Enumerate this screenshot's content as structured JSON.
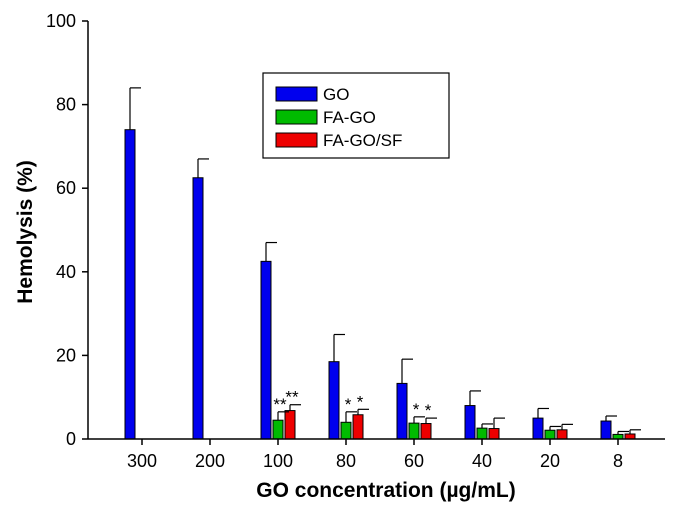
{
  "chart_data": {
    "type": "bar",
    "title": "",
    "xlabel": "GO concentration (µg/mL)",
    "ylabel": "Hemolysis (%)",
    "ylim": [
      0,
      100
    ],
    "yticks": [
      0,
      20,
      40,
      60,
      80,
      100
    ],
    "categories": [
      "300",
      "200",
      "100",
      "80",
      "60",
      "40",
      "20",
      "8"
    ],
    "series": [
      {
        "name": "GO",
        "color": "#0000ee",
        "values": [
          74,
          62.5,
          42.5,
          18.5,
          13.3,
          8,
          5,
          4.3
        ],
        "errors": [
          10,
          4.5,
          4.5,
          6.5,
          5.8,
          3.5,
          2.3,
          1.2
        ]
      },
      {
        "name": "FA-GO",
        "color": "#00bb00",
        "values": [
          null,
          null,
          4.5,
          4,
          3.8,
          2.6,
          2.1,
          1.1
        ],
        "errors": [
          null,
          null,
          2,
          2.5,
          1.5,
          1,
          0.9,
          0.7
        ]
      },
      {
        "name": "FA-GO/SF",
        "color": "#ee0000",
        "values": [
          null,
          null,
          6.8,
          5.8,
          3.7,
          2.5,
          2.2,
          1.2
        ],
        "errors": [
          null,
          null,
          1.4,
          1.3,
          1.3,
          2.5,
          1.3,
          1
        ]
      }
    ],
    "annotations": [
      {
        "category": "100",
        "series": "FA-GO",
        "text": "**"
      },
      {
        "category": "100",
        "series": "FA-GO/SF",
        "text": "**"
      },
      {
        "category": "80",
        "series": "FA-GO",
        "text": "*"
      },
      {
        "category": "80",
        "series": "FA-GO/SF",
        "text": "*"
      },
      {
        "category": "60",
        "series": "FA-GO",
        "text": "*"
      },
      {
        "category": "60",
        "series": "FA-GO/SF",
        "text": "*"
      }
    ],
    "legend": {
      "position": "top-center",
      "entries": [
        "GO",
        "FA-GO",
        "FA-GO/SF"
      ]
    },
    "grid": false
  }
}
